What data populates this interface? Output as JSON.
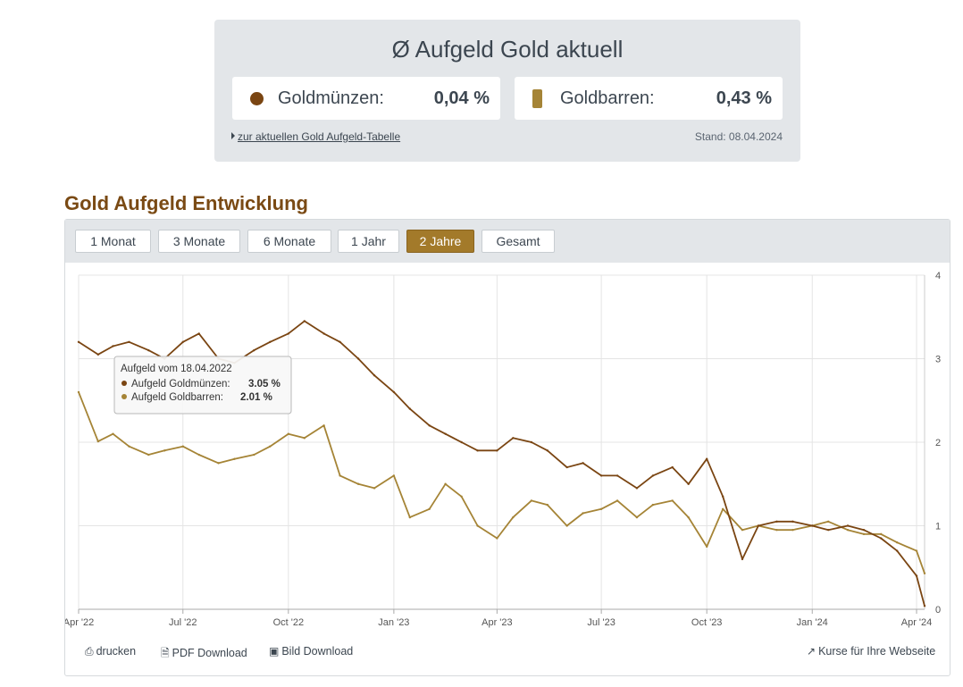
{
  "summary": {
    "title": "Ø Aufgeld Gold aktuell",
    "coins": {
      "label": "Goldmünzen:",
      "value": "0,04 %"
    },
    "bars": {
      "label": "Goldbarren:",
      "value": "0,43 %"
    },
    "link_text": "zur aktuellen Gold Aufgeld-Tabelle",
    "stand": "Stand: 08.04.2024"
  },
  "section_title": "Gold Aufgeld Entwicklung",
  "ranges": [
    {
      "label": "1 Monat",
      "active": false
    },
    {
      "label": "3 Monate",
      "active": false
    },
    {
      "label": "6 Monate",
      "active": false
    },
    {
      "label": "1 Jahr",
      "active": false
    },
    {
      "label": "2 Jahre",
      "active": true
    },
    {
      "label": "Gesamt",
      "active": false
    }
  ],
  "footer": {
    "print": "drucken",
    "pdf": "PDF Download",
    "image": "Bild Download",
    "embed": "Kurse für Ihre Webseite"
  },
  "colors": {
    "coins": "#7a4512",
    "bars": "#a58436",
    "accent": "#a37a2a"
  },
  "chart_data": {
    "type": "line",
    "x_range": [
      "2022-04-01",
      "2024-04-08"
    ],
    "ylim": [
      0,
      4
    ],
    "y_ticks": [
      "0",
      "1",
      "2",
      "3",
      "4"
    ],
    "x_ticks": [
      {
        "date": "2022-04-01",
        "label": "Apr '22"
      },
      {
        "date": "2022-07-01",
        "label": "Jul '22"
      },
      {
        "date": "2022-10-01",
        "label": "Oct '22"
      },
      {
        "date": "2023-01-01",
        "label": "Jan '23"
      },
      {
        "date": "2023-04-01",
        "label": "Apr '23"
      },
      {
        "date": "2023-07-01",
        "label": "Jul '23"
      },
      {
        "date": "2023-10-01",
        "label": "Oct '23"
      },
      {
        "date": "2024-01-01",
        "label": "Jan '24"
      },
      {
        "date": "2024-04-01",
        "label": "Apr '24"
      }
    ],
    "grid": true,
    "y_axis_position": "right",
    "series": [
      {
        "name": "Aufgeld Goldmünzen",
        "x": [
          "2022-04-01",
          "2022-04-18",
          "2022-05-01",
          "2022-05-15",
          "2022-06-01",
          "2022-06-15",
          "2022-07-01",
          "2022-07-15",
          "2022-08-01",
          "2022-08-15",
          "2022-09-01",
          "2022-09-15",
          "2022-10-01",
          "2022-10-15",
          "2022-11-01",
          "2022-11-15",
          "2022-12-01",
          "2022-12-15",
          "2023-01-01",
          "2023-01-15",
          "2023-02-01",
          "2023-02-15",
          "2023-03-01",
          "2023-03-15",
          "2023-04-01",
          "2023-04-15",
          "2023-05-01",
          "2023-05-15",
          "2023-06-01",
          "2023-06-15",
          "2023-07-01",
          "2023-07-15",
          "2023-08-01",
          "2023-08-15",
          "2023-09-01",
          "2023-09-15",
          "2023-10-01",
          "2023-10-15",
          "2023-11-01",
          "2023-11-15",
          "2023-12-01",
          "2023-12-15",
          "2024-01-01",
          "2024-01-15",
          "2024-02-01",
          "2024-02-15",
          "2024-03-01",
          "2024-03-15",
          "2024-04-01",
          "2024-04-08"
        ],
        "values": [
          3.2,
          3.05,
          3.15,
          3.2,
          3.1,
          3.0,
          3.2,
          3.3,
          3.0,
          2.95,
          3.1,
          3.2,
          3.3,
          3.45,
          3.3,
          3.2,
          3.0,
          2.8,
          2.6,
          2.4,
          2.2,
          2.1,
          2.0,
          1.9,
          1.9,
          2.05,
          2.0,
          1.9,
          1.7,
          1.75,
          1.6,
          1.6,
          1.45,
          1.6,
          1.7,
          1.5,
          1.8,
          1.35,
          0.6,
          1.0,
          1.05,
          1.05,
          1.0,
          0.95,
          1.0,
          0.95,
          0.85,
          0.7,
          0.4,
          0.04
        ]
      },
      {
        "name": "Aufgeld Goldbarren",
        "x": [
          "2022-04-01",
          "2022-04-18",
          "2022-05-01",
          "2022-05-15",
          "2022-06-01",
          "2022-06-15",
          "2022-07-01",
          "2022-07-15",
          "2022-08-01",
          "2022-08-15",
          "2022-09-01",
          "2022-09-15",
          "2022-10-01",
          "2022-10-15",
          "2022-11-01",
          "2022-11-15",
          "2022-12-01",
          "2022-12-15",
          "2023-01-01",
          "2023-01-15",
          "2023-02-01",
          "2023-02-15",
          "2023-03-01",
          "2023-03-15",
          "2023-04-01",
          "2023-04-15",
          "2023-05-01",
          "2023-05-15",
          "2023-06-01",
          "2023-06-15",
          "2023-07-01",
          "2023-07-15",
          "2023-08-01",
          "2023-08-15",
          "2023-09-01",
          "2023-09-15",
          "2023-10-01",
          "2023-10-15",
          "2023-11-01",
          "2023-11-15",
          "2023-12-01",
          "2023-12-15",
          "2024-01-01",
          "2024-01-15",
          "2024-02-01",
          "2024-02-15",
          "2024-03-01",
          "2024-03-15",
          "2024-04-01",
          "2024-04-08"
        ],
        "values": [
          2.6,
          2.01,
          2.1,
          1.95,
          1.85,
          1.9,
          1.95,
          1.85,
          1.75,
          1.8,
          1.85,
          1.95,
          2.1,
          2.05,
          2.2,
          1.6,
          1.5,
          1.45,
          1.6,
          1.1,
          1.2,
          1.5,
          1.35,
          1.0,
          0.85,
          1.1,
          1.3,
          1.25,
          1.0,
          1.15,
          1.2,
          1.3,
          1.1,
          1.25,
          1.3,
          1.1,
          0.75,
          1.2,
          0.95,
          1.0,
          0.95,
          0.95,
          1.0,
          1.05,
          0.95,
          0.9,
          0.9,
          0.8,
          0.7,
          0.43
        ]
      }
    ],
    "tooltip": {
      "title": "Aufgeld vom 18.04.2022",
      "coins_label": "Aufgeld Goldmünzen:",
      "coins_value": "3.05 %",
      "bars_label": "Aufgeld Goldbarren:",
      "bars_value": "2.01 %"
    }
  }
}
